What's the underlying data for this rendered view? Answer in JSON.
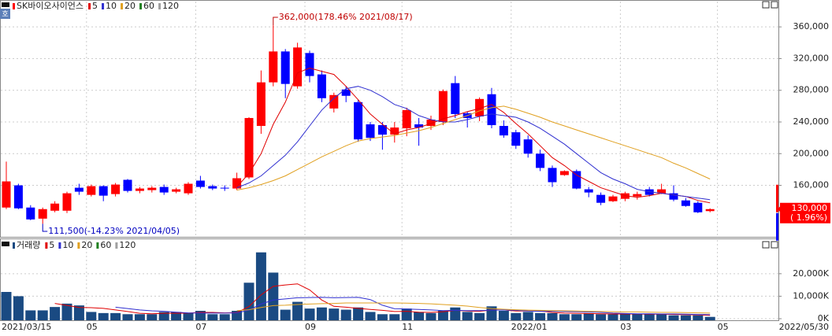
{
  "chart_data": [
    {
      "type": "candlestick",
      "title": "SK바이오사이언스",
      "badge": "호",
      "open": [
        132000,
        160000,
        132000,
        118000,
        128000,
        128000,
        157000,
        148000,
        159000,
        149000,
        167000,
        153000,
        154000,
        158000,
        152000,
        150000,
        166000,
        159000,
        157000,
        156000,
        170000,
        235000,
        290000,
        329000,
        285000,
        327000,
        300000,
        257000,
        281000,
        265000,
        237000,
        236000,
        224000,
        232000,
        237000,
        235000,
        240000,
        289000,
        251000,
        247000,
        275000,
        235000,
        227000,
        218000,
        200000,
        182000,
        173000,
        178000,
        155000,
        148000,
        140000,
        143000,
        146000,
        155000,
        150000,
        150000,
        141000,
        138000,
        127500,
        null
      ],
      "high": [
        190000,
        162000,
        135000,
        132000,
        140000,
        152000,
        162000,
        161000,
        160000,
        163000,
        168000,
        158000,
        159000,
        161000,
        157000,
        164000,
        172000,
        161000,
        160000,
        176000,
        246000,
        305000,
        362000,
        332000,
        340000,
        330000,
        305000,
        277000,
        285000,
        268000,
        240000,
        240000,
        240000,
        258000,
        245000,
        248000,
        281000,
        298000,
        253000,
        271000,
        283000,
        242000,
        230000,
        223000,
        205000,
        185000,
        179000,
        180000,
        158000,
        151000,
        148000,
        152000,
        152000,
        158000,
        162000,
        160000,
        144000,
        140000,
        131000,
        null
      ],
      "low": [
        130000,
        130000,
        116000,
        111500,
        126000,
        125000,
        148000,
        146000,
        140000,
        146000,
        151000,
        150000,
        151000,
        148000,
        150000,
        148000,
        156000,
        154000,
        153000,
        154000,
        168000,
        225000,
        285000,
        270000,
        282000,
        290000,
        265000,
        252000,
        265000,
        215000,
        216000,
        205000,
        214000,
        222000,
        210000,
        230000,
        236000,
        245000,
        233000,
        241000,
        232000,
        220000,
        206000,
        195000,
        178000,
        158000,
        172000,
        155000,
        145000,
        135000,
        139000,
        140000,
        142000,
        146000,
        149000,
        140000,
        133000,
        125000,
        126000,
        null
      ],
      "close": [
        165000,
        131000,
        117000,
        130000,
        137000,
        150000,
        152000,
        159000,
        147000,
        161000,
        153000,
        156000,
        157000,
        151000,
        155000,
        162000,
        158000,
        156000,
        156000,
        169000,
        245000,
        290000,
        329000,
        288000,
        334000,
        298000,
        270000,
        274000,
        273000,
        218000,
        220000,
        224000,
        233000,
        255000,
        233000,
        243000,
        279000,
        250000,
        245000,
        269000,
        236000,
        223000,
        210000,
        200000,
        182000,
        164000,
        178000,
        156000,
        151000,
        138000,
        146000,
        150000,
        149000,
        148000,
        155000,
        142000,
        134000,
        126000,
        130000,
        null
      ],
      "up_color": "#ff0000",
      "down_color": "#0000ff",
      "series": [
        {
          "name": "5",
          "color": "#e00000",
          "values": [
            null,
            null,
            null,
            null,
            null,
            null,
            null,
            null,
            null,
            null,
            null,
            null,
            null,
            null,
            null,
            null,
            null,
            null,
            null,
            158000,
            175000,
            200000,
            237000,
            265000,
            302000,
            308000,
            304000,
            300000,
            285000,
            268000,
            250000,
            237000,
            225000,
            230000,
            233000,
            238000,
            244000,
            248000,
            253000,
            257000,
            262000,
            252000,
            238000,
            225000,
            210000,
            195000,
            185000,
            173000,
            165000,
            157000,
            152000,
            147000,
            145000,
            147000,
            150000,
            148000,
            146000,
            141000,
            138000,
            null
          ]
        },
        {
          "name": "10",
          "color": "#3030d0",
          "values": [
            null,
            null,
            null,
            null,
            null,
            null,
            null,
            null,
            null,
            null,
            null,
            null,
            null,
            null,
            null,
            null,
            null,
            null,
            null,
            157000,
            163000,
            172000,
            185000,
            198000,
            215000,
            235000,
            255000,
            270000,
            282000,
            285000,
            280000,
            272000,
            262000,
            257000,
            248000,
            243000,
            240000,
            240000,
            243000,
            247000,
            250000,
            248000,
            246000,
            240000,
            232000,
            222000,
            212000,
            200000,
            188000,
            176000,
            168000,
            162000,
            155000,
            152000,
            150000,
            148000,
            146000,
            144000,
            142000,
            null
          ]
        },
        {
          "name": "20",
          "color": "#e0a020",
          "values": [
            null,
            null,
            null,
            null,
            null,
            null,
            null,
            null,
            null,
            null,
            null,
            null,
            null,
            null,
            null,
            null,
            null,
            null,
            null,
            154000,
            157000,
            161000,
            166000,
            172000,
            180000,
            188000,
            196000,
            203000,
            210000,
            216000,
            219000,
            221000,
            223000,
            226000,
            229000,
            233000,
            238000,
            243000,
            248000,
            254000,
            258000,
            260000,
            256000,
            251000,
            246000,
            240000,
            235000,
            230000,
            225000,
            220000,
            215000,
            210000,
            205000,
            200000,
            195000,
            188000,
            182000,
            175000,
            168000,
            null
          ]
        },
        {
          "name": "60",
          "color": "#208020"
        },
        {
          "name": "120",
          "color": "#a0a0a0"
        }
      ],
      "annotations": [
        {
          "text": "362,000(178.46% 2021/08/17)",
          "color": "#c00000"
        },
        {
          "text": "111,500(-14.23% 2021/04/05)",
          "color": "#0000c0"
        }
      ],
      "last_price_label": "130,000",
      "last_change_label": "( 1.96%)",
      "ylim": [
        96000,
        384000
      ],
      "yticks": [
        {
          "value": 160000,
          "label": "160,000"
        },
        {
          "value": 200000,
          "label": "200,000"
        },
        {
          "value": 240000,
          "label": "240,000"
        },
        {
          "value": 280000,
          "label": "280,000"
        },
        {
          "value": 320000,
          "label": "320,000"
        },
        {
          "value": 360000,
          "label": "360,000"
        }
      ],
      "grid": true
    },
    {
      "type": "bar",
      "title": "거래량",
      "color": "#1a4a82",
      "categories": [
        "2021/03/15",
        null,
        null,
        null,
        null,
        null,
        null,
        "05",
        null,
        null,
        null,
        null,
        null,
        null,
        null,
        null,
        "07",
        null,
        null,
        null,
        null,
        null,
        null,
        null,
        null,
        "09",
        null,
        null,
        null,
        null,
        null,
        null,
        null,
        "11",
        null,
        null,
        null,
        null,
        null,
        null,
        null,
        null,
        "2022/01",
        null,
        null,
        null,
        null,
        null,
        null,
        null,
        null,
        "03",
        null,
        null,
        null,
        null,
        null,
        null,
        null,
        "05"
      ],
      "values": [
        11900,
        10000,
        3700,
        3700,
        5200,
        6700,
        5900,
        3000,
        2500,
        2500,
        2000,
        2000,
        2000,
        3000,
        3000,
        2500,
        3500,
        2000,
        2000,
        3500,
        16000,
        29500,
        20500,
        4000,
        7500,
        4500,
        5000,
        4500,
        4000,
        5000,
        3000,
        2000,
        2000,
        4500,
        3000,
        2500,
        3500,
        5000,
        3000,
        2500,
        5500,
        3500,
        2500,
        3000,
        2500,
        2500,
        2000,
        2000,
        2500,
        2000,
        2000,
        2000,
        2000,
        2000,
        2000,
        1500,
        1500,
        1500,
        800,
        null
      ],
      "series": [
        {
          "name": "5",
          "color": "#e00000",
          "values": [
            null,
            null,
            null,
            null,
            6800,
            5900,
            5000,
            4900,
            4600,
            3900,
            3200,
            2400,
            2200,
            2400,
            2400,
            2500,
            2800,
            2800,
            2600,
            2700,
            5400,
            10600,
            14400,
            15000,
            15500,
            12800,
            8300,
            5500,
            5100,
            4600,
            4100,
            3700,
            3200,
            3300,
            2900,
            2800,
            3100,
            3700,
            3400,
            3300,
            3900,
            3900,
            3400,
            3400,
            3400,
            2800,
            2500,
            2400,
            2300,
            2200,
            2100,
            2100,
            2100,
            2000,
            2000,
            1900,
            1800,
            1700,
            1500,
            null
          ]
        },
        {
          "name": "10",
          "color": "#3030d0",
          "values": [
            null,
            null,
            null,
            null,
            null,
            null,
            null,
            null,
            null,
            5100,
            4500,
            3900,
            3500,
            3300,
            2900,
            2600,
            2500,
            2500,
            2500,
            2600,
            3800,
            6500,
            8300,
            8800,
            9300,
            9400,
            9500,
            9300,
            9400,
            9500,
            8500,
            6000,
            4400,
            4300,
            4100,
            3900,
            3600,
            3700,
            3600,
            3600,
            3800,
            3900,
            3700,
            3400,
            3300,
            3300,
            3200,
            3100,
            3000,
            2800,
            2500,
            2300,
            2200,
            2200,
            2100,
            2100,
            2000,
            1900,
            1800,
            null
          ]
        },
        {
          "name": "20",
          "color": "#e0a020",
          "values": [
            null,
            null,
            null,
            null,
            null,
            null,
            null,
            null,
            null,
            null,
            null,
            null,
            null,
            null,
            null,
            null,
            null,
            null,
            null,
            3600,
            4000,
            5000,
            5800,
            6000,
            6300,
            6500,
            6700,
            6800,
            7000,
            7000,
            7000,
            7000,
            7000,
            6900,
            6800,
            6600,
            6300,
            6000,
            5600,
            5000,
            4500,
            4200,
            4000,
            3800,
            3700,
            3600,
            3500,
            3400,
            3300,
            3200,
            3100,
            3000,
            3000,
            2900,
            2800,
            2800,
            2700,
            2600,
            2500,
            null
          ]
        },
        {
          "name": "60",
          "color": "#208020"
        },
        {
          "name": "120",
          "color": "#a0a0a0"
        }
      ],
      "ylim": [
        0,
        35000
      ],
      "yticks": [
        {
          "value": 0,
          "label": "0K"
        },
        {
          "value": 10000,
          "label": "10,000K"
        },
        {
          "value": 20000,
          "label": "20,000K"
        }
      ],
      "x_end_label": "2022/05/30",
      "grid": true
    }
  ]
}
